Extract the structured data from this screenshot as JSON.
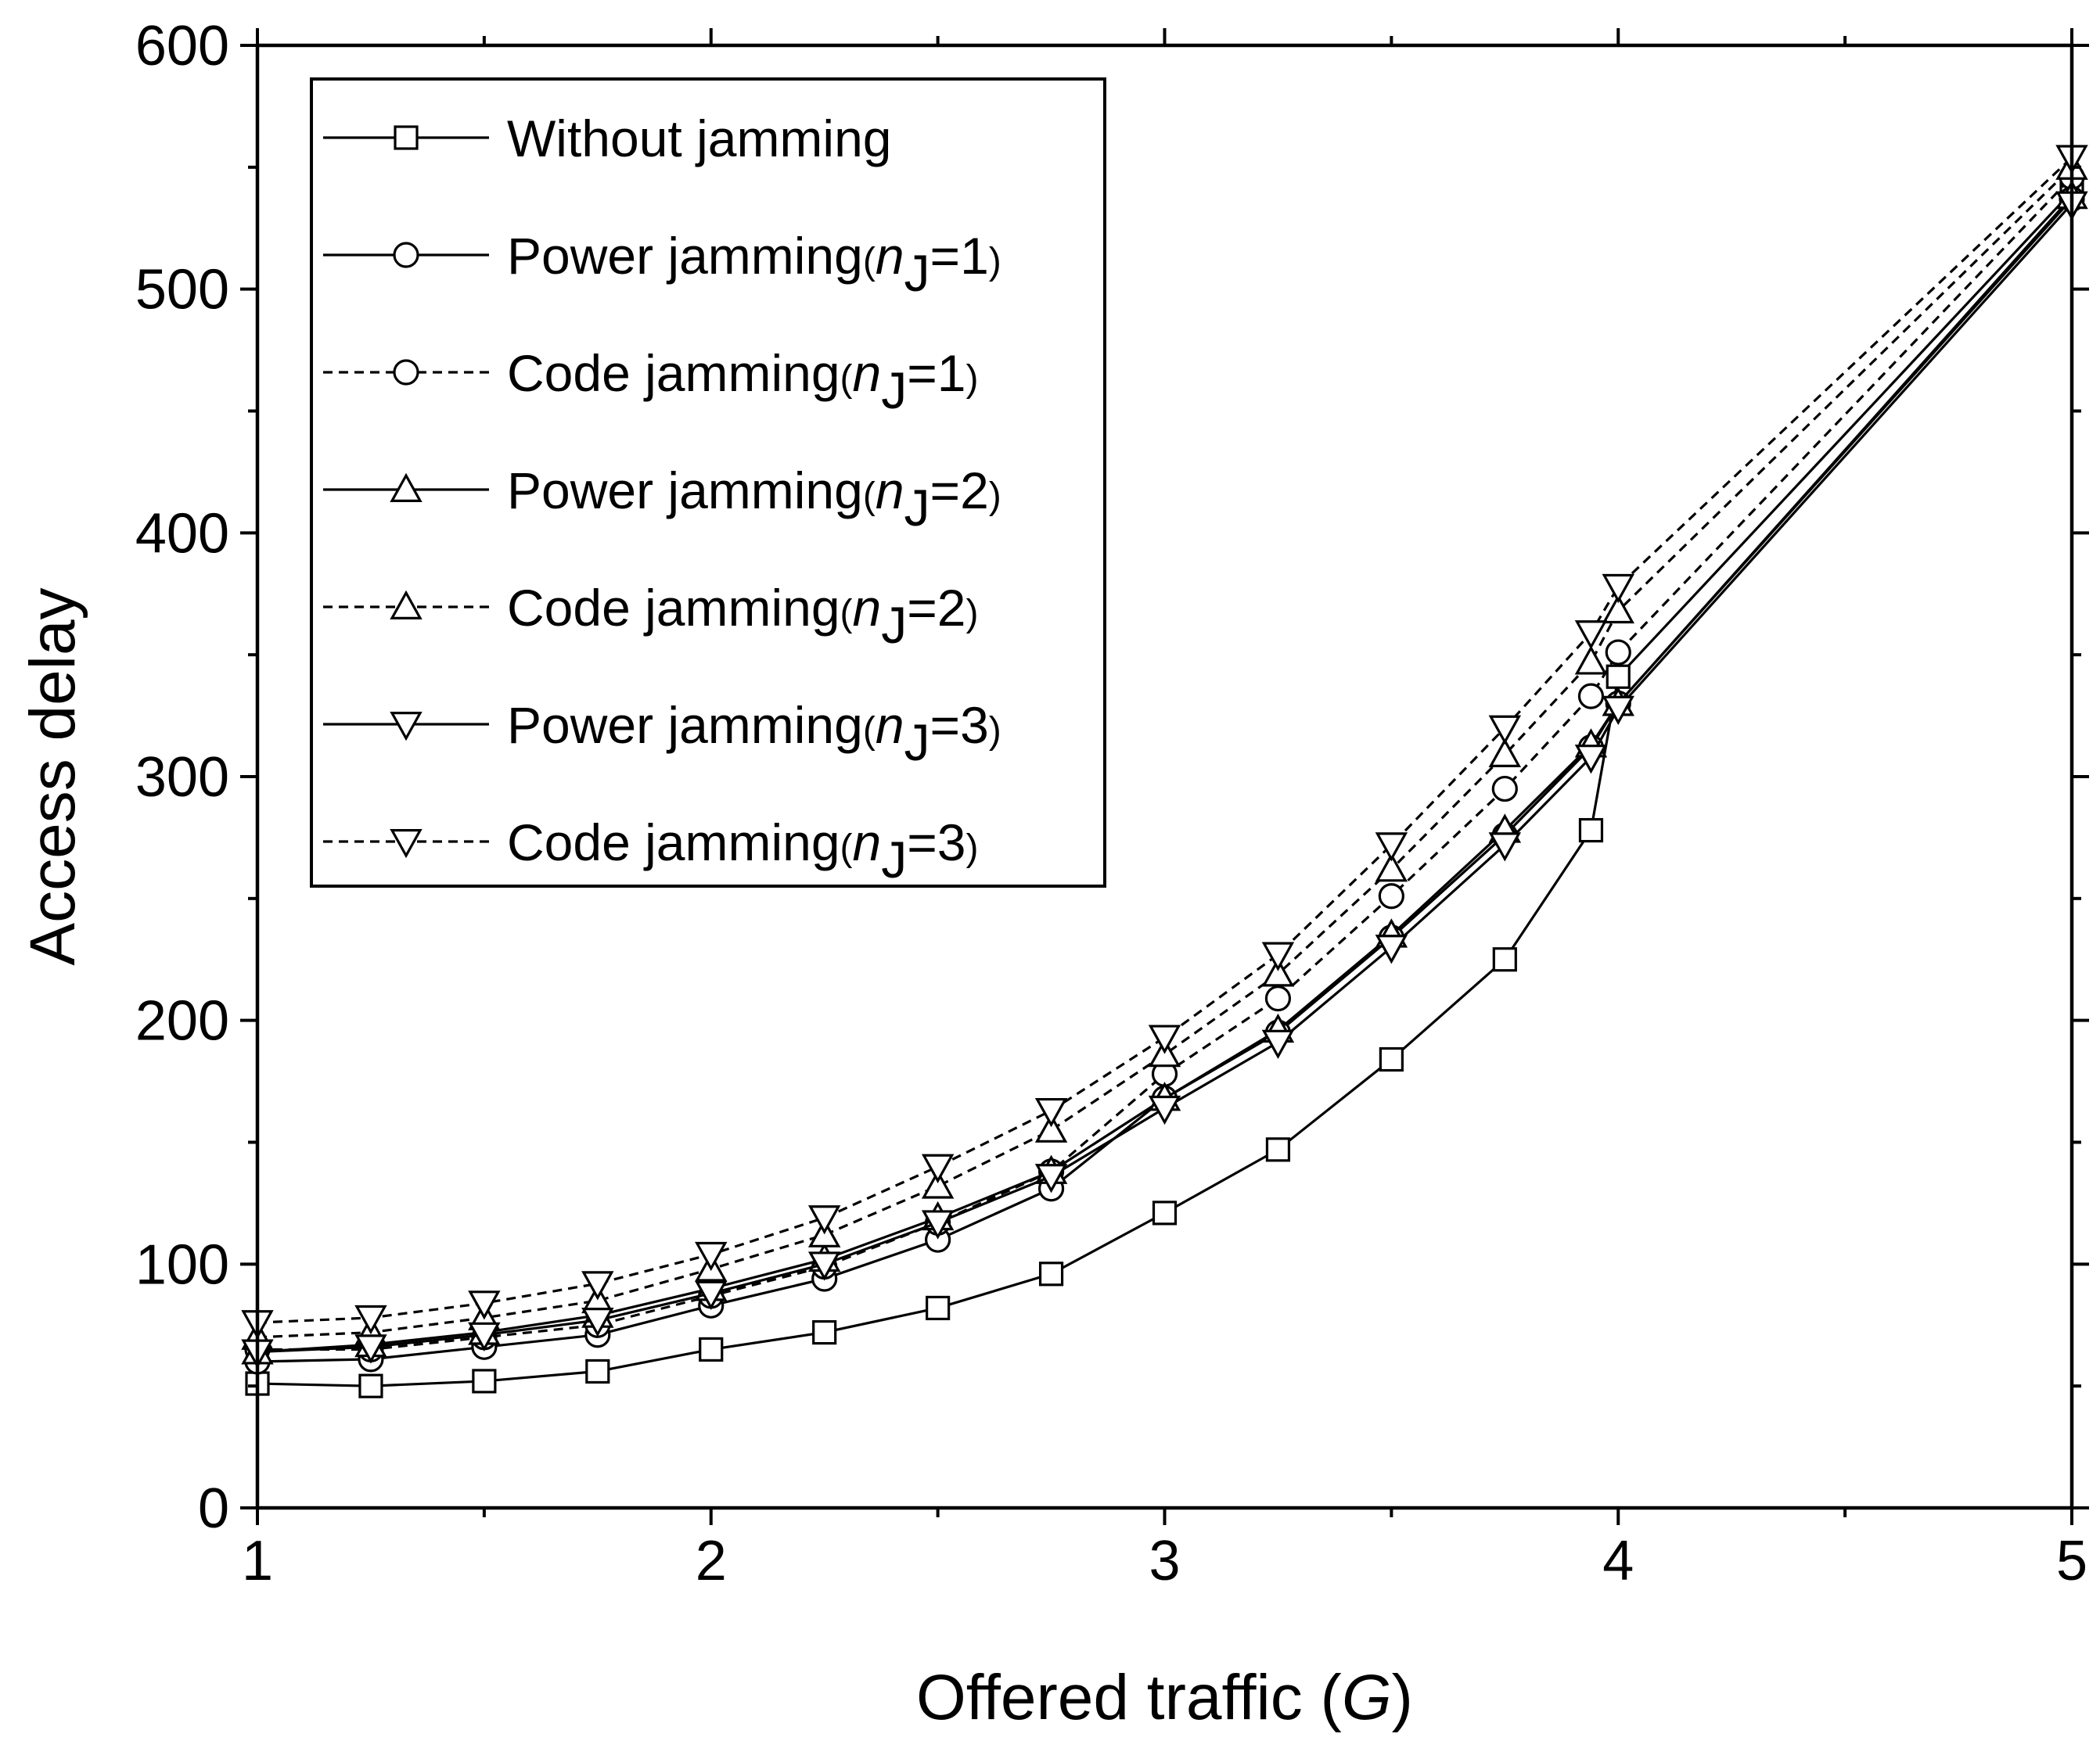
{
  "chart_data": {
    "type": "line",
    "title": "",
    "xlabel": {
      "prefix": "Offered traffic (",
      "var": "G",
      "suffix": ")"
    },
    "ylabel": "Access delay",
    "xlim": [
      1,
      5
    ],
    "ylim": [
      0,
      600
    ],
    "xticks": [
      1,
      2,
      3,
      4,
      5
    ],
    "xtick_labels": [
      "1",
      "2",
      "3",
      "4",
      "5"
    ],
    "yticks": [
      0,
      100,
      200,
      300,
      400,
      500,
      600
    ],
    "ytick_labels": [
      "0",
      "100",
      "200",
      "300",
      "400",
      "500",
      "600"
    ],
    "x_minor_step": 0.5,
    "y_minor_step": 50,
    "grid": false,
    "legend_position": "top-left",
    "x": [
      1,
      1.25,
      1.5,
      1.75,
      2,
      2.25,
      2.5,
      2.75,
      3,
      3.25,
      3.5,
      3.75,
      3.94,
      4,
      5
    ],
    "series": [
      {
        "name": "Without jamming",
        "legend_base": "Without jamming",
        "legend_n": "",
        "marker": "square",
        "dash": "solid",
        "values": [
          51,
          50,
          52,
          56,
          65,
          72,
          82,
          96,
          121,
          147,
          184,
          225,
          278,
          341,
          540
        ]
      },
      {
        "name": "Power jamming(nJ=1)",
        "legend_base": "Power jamming",
        "legend_n": "1",
        "marker": "circle",
        "dash": "solid",
        "values": [
          60,
          61,
          66,
          71,
          83,
          94,
          110,
          131,
          168,
          195,
          234,
          276,
          312,
          330,
          537
        ]
      },
      {
        "name": "Code jamming(nJ=1)",
        "legend_base": "Code jamming",
        "legend_n": "1",
        "marker": "circle",
        "dash": "dashed",
        "values": [
          65,
          65,
          70,
          75,
          87,
          99,
          117,
          138,
          178,
          209,
          251,
          295,
          333,
          351,
          546
        ]
      },
      {
        "name": "Power jamming(nJ=2)",
        "legend_base": "Power jamming",
        "legend_n": "2",
        "marker": "triangle-up",
        "dash": "solid",
        "values": [
          64,
          67,
          72,
          79,
          90,
          102,
          119,
          138,
          168,
          196,
          235,
          278,
          313,
          330,
          538
        ]
      },
      {
        "name": "Code jamming(nJ=2)",
        "legend_base": "Code jamming",
        "legend_n": "2",
        "marker": "triangle-up",
        "dash": "dashed",
        "values": [
          70,
          72,
          78,
          85,
          98,
          112,
          132,
          155,
          186,
          219,
          262,
          309,
          347,
          368,
          550
        ]
      },
      {
        "name": "Power jamming(nJ=3)",
        "legend_base": "Power jamming",
        "legend_n": "3",
        "marker": "triangle-down",
        "dash": "solid",
        "values": [
          64,
          66,
          71,
          77,
          88,
          100,
          117,
          136,
          164,
          191,
          230,
          272,
          308,
          328,
          535
        ]
      },
      {
        "name": "Code jamming(nJ=3)",
        "legend_base": "Code jamming",
        "legend_n": "3",
        "marker": "triangle-down",
        "dash": "dashed",
        "values": [
          76,
          78,
          84,
          92,
          104,
          119,
          140,
          163,
          193,
          227,
          272,
          320,
          359,
          378,
          554
        ]
      }
    ],
    "colors": {
      "line": "#000000",
      "marker_fill": "#ffffff",
      "background": "#ffffff"
    },
    "legend_subscript": "J",
    "legend_var": "n"
  }
}
